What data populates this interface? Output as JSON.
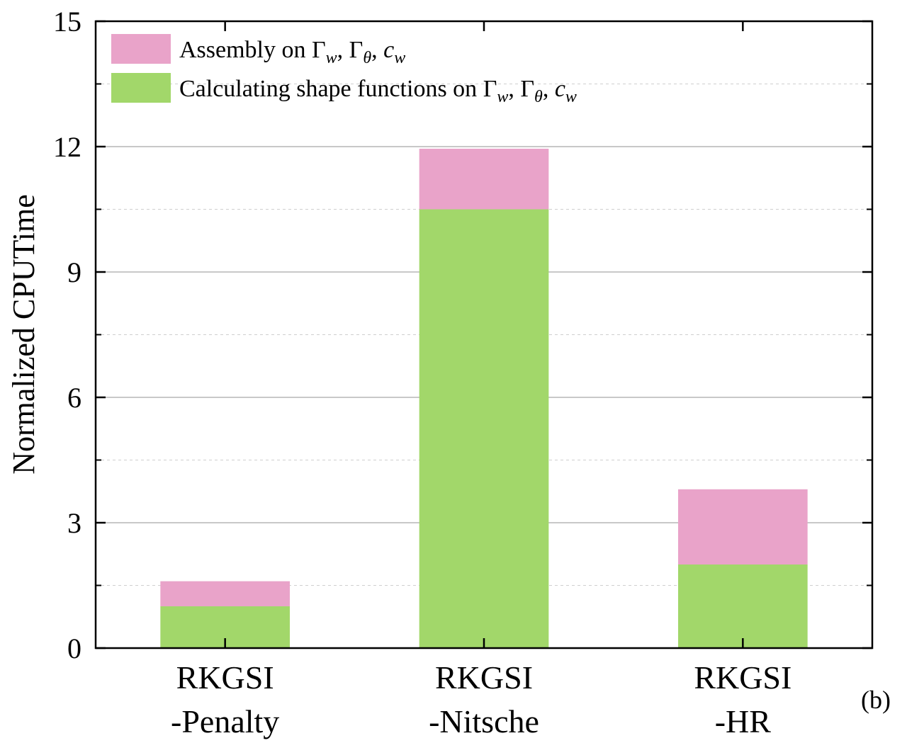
{
  "chart_data": {
    "type": "bar",
    "stacked": true,
    "categories": [
      {
        "line1": "RKGSI",
        "line2": "-Penalty"
      },
      {
        "line1": "RKGSI",
        "line2": "-Nitsche"
      },
      {
        "line1": "RKGSI",
        "line2": "-HR"
      }
    ],
    "series": [
      {
        "name": "Calculating shape functions on Γw, Γθ, cw",
        "color": "#a2d76a",
        "values": [
          1.0,
          10.5,
          2.0
        ]
      },
      {
        "name": "Assembly on Γw, Γθ, cw",
        "color": "#e9a3c9",
        "values": [
          0.6,
          1.45,
          1.8
        ]
      }
    ],
    "legend": {
      "placement": "top-left",
      "entries": [
        {
          "prefix": "Assembly on ",
          "series": 1
        },
        {
          "prefix": "Calculating shape functions on ",
          "series": 0
        }
      ],
      "symbols": {
        "gamma": "Γ",
        "sub_w": "w",
        "sub_theta": "θ",
        "c": "c"
      }
    },
    "ylabel": "Normalized CPUTime",
    "xlabel": "",
    "ylim": [
      0,
      15
    ],
    "yticks": [
      0,
      3,
      6,
      9,
      12,
      15
    ],
    "grid": true,
    "panel_label": "(b)"
  }
}
